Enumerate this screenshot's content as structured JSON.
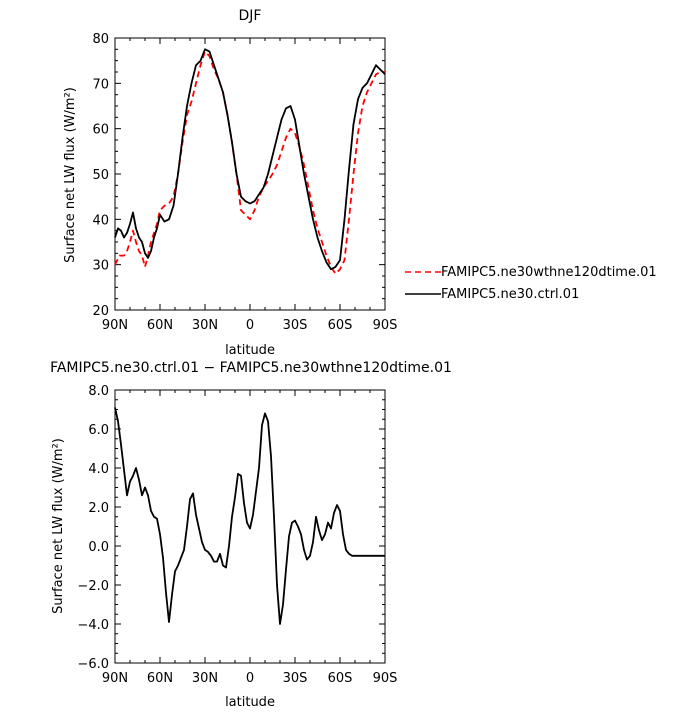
{
  "chart_data": [
    {
      "type": "line",
      "title": "DJF",
      "xlabel": "latitude",
      "ylabel": "Surface net LW flux (W/m²)",
      "xlim": [
        90,
        -90
      ],
      "ylim": [
        20,
        80
      ],
      "x_ticks": [
        90,
        60,
        30,
        0,
        -30,
        -60,
        -90
      ],
      "x_tick_labels": [
        "90N",
        "60N",
        "30N",
        "0",
        "30S",
        "60S",
        "90S"
      ],
      "y_ticks": [
        20,
        30,
        40,
        50,
        60,
        70,
        80
      ],
      "y_tick_labels": [
        "20",
        "30",
        "40",
        "50",
        "60",
        "70",
        "80"
      ],
      "grid": false,
      "legend_position": "outside-right",
      "series": [
        {
          "name": "FAMIPC5.ne30wthne120dtime.01",
          "color": "#ff0000",
          "dash": "dashed",
          "x": [
            90,
            87,
            84,
            82,
            80,
            78,
            76,
            74,
            72,
            70,
            68,
            66,
            64,
            62,
            60,
            57,
            54,
            51,
            48,
            45,
            42,
            39,
            36,
            33,
            30,
            27,
            24,
            21,
            18,
            15,
            12,
            9,
            6,
            3,
            0,
            -3,
            -6,
            -9,
            -12,
            -15,
            -18,
            -21,
            -24,
            -27,
            -30,
            -33,
            -36,
            -39,
            -42,
            -45,
            -48,
            -51,
            -54,
            -57,
            -60,
            -63,
            -66,
            -69,
            -72,
            -75,
            -78,
            -81,
            -84,
            -87,
            -90
          ],
          "y": [
            30,
            32,
            32,
            33,
            35,
            37.5,
            35,
            33,
            32,
            29.5,
            32,
            35,
            37,
            39,
            42,
            43,
            43.5,
            45,
            50,
            57,
            63,
            66,
            70,
            74,
            77,
            76,
            73,
            71,
            68,
            63,
            57,
            50,
            42,
            41,
            40,
            42,
            45,
            47,
            48.5,
            50,
            52,
            55,
            58,
            60,
            59,
            56,
            52,
            47,
            42,
            38,
            35,
            32,
            29.5,
            28,
            29,
            31,
            40,
            50,
            59,
            65,
            68,
            70,
            72,
            72.5,
            72.5
          ]
        },
        {
          "name": "FAMIPC5.ne30.ctrl.01",
          "color": "#000000",
          "dash": "solid",
          "x": [
            90,
            88,
            86,
            84,
            82,
            80,
            78,
            76,
            74,
            72,
            70,
            68,
            66,
            64,
            62,
            60,
            57,
            54,
            51,
            48,
            45,
            42,
            39,
            36,
            33,
            30,
            27,
            24,
            21,
            18,
            15,
            12,
            9,
            6,
            3,
            0,
            -3,
            -6,
            -9,
            -12,
            -15,
            -18,
            -21,
            -24,
            -27,
            -30,
            -33,
            -36,
            -39,
            -42,
            -45,
            -48,
            -51,
            -54,
            -57,
            -60,
            -63,
            -66,
            -69,
            -72,
            -75,
            -78,
            -81,
            -84,
            -87,
            -90
          ],
          "y": [
            36,
            38,
            37.5,
            36,
            37,
            39,
            41.5,
            38,
            36,
            35,
            32.5,
            31.5,
            33,
            36,
            38,
            41,
            39.5,
            40,
            43,
            50,
            58,
            65,
            70,
            74,
            75,
            77.5,
            77,
            74,
            71,
            68,
            63,
            57,
            50,
            45,
            44,
            43.5,
            44,
            45.5,
            47,
            50,
            54,
            58,
            62,
            64.5,
            65,
            62,
            56,
            50,
            45,
            40,
            36,
            33,
            30.5,
            29,
            29.5,
            31,
            40,
            51,
            61,
            66.5,
            69,
            70,
            72,
            74,
            73,
            72
          ]
        }
      ]
    },
    {
      "type": "line",
      "title": "FAMIPC5.ne30.ctrl.01 − FAMIPC5.ne30wthne120dtime.01",
      "xlabel": "latitude",
      "ylabel": "Surface net LW flux (W/m²)",
      "xlim": [
        90,
        -90
      ],
      "ylim": [
        -6,
        8
      ],
      "x_ticks": [
        90,
        60,
        30,
        0,
        -30,
        -60,
        -90
      ],
      "x_tick_labels": [
        "90N",
        "60N",
        "30N",
        "0",
        "30S",
        "60S",
        "90S"
      ],
      "y_ticks": [
        -6,
        -4,
        -2,
        0,
        2,
        4,
        6,
        8
      ],
      "y_tick_labels": [
        "−6.0",
        "−4.0",
        "−2.0",
        "0.0",
        "2.0",
        "4.0",
        "6.0",
        "8.0"
      ],
      "grid": false,
      "series": [
        {
          "color": "#000000",
          "dash": "solid",
          "x": [
            90,
            88,
            86,
            84,
            82,
            80,
            78,
            76,
            74,
            72,
            70,
            68,
            66,
            64,
            62,
            60,
            58,
            56,
            54,
            52,
            50,
            48,
            46,
            44,
            42,
            40,
            38,
            36,
            34,
            32,
            30,
            28,
            26,
            24,
            22,
            20,
            18,
            16,
            14,
            12,
            10,
            8,
            6,
            4,
            2,
            0,
            -2,
            -4,
            -6,
            -8,
            -10,
            -12,
            -14,
            -16,
            -18,
            -20,
            -22,
            -24,
            -26,
            -28,
            -30,
            -32,
            -34,
            -36,
            -38,
            -40,
            -42,
            -44,
            -46,
            -48,
            -50,
            -52,
            -54,
            -56,
            -58,
            -60,
            -62,
            -64,
            -66,
            -68,
            -70,
            -72,
            -74,
            -76,
            -78,
            -80,
            -82,
            -84,
            -86,
            -88,
            -90
          ],
          "y": [
            7.1,
            6.4,
            5.2,
            3.9,
            2.6,
            3.3,
            3.6,
            4.0,
            3.4,
            2.6,
            3.0,
            2.6,
            1.8,
            1.5,
            1.4,
            0.6,
            -0.6,
            -2.4,
            -3.9,
            -2.5,
            -1.3,
            -1.0,
            -0.6,
            -0.2,
            1.0,
            2.4,
            2.7,
            1.6,
            0.9,
            0.2,
            -0.2,
            -0.3,
            -0.5,
            -0.8,
            -0.8,
            -0.4,
            -1.0,
            -1.1,
            0.0,
            1.5,
            2.5,
            3.7,
            3.6,
            2.2,
            1.2,
            0.9,
            1.6,
            2.8,
            4.0,
            6.2,
            6.8,
            6.4,
            4.6,
            1.5,
            -2.0,
            -4.0,
            -3.0,
            -1.2,
            0.5,
            1.2,
            1.3,
            1.0,
            0.6,
            -0.2,
            -0.7,
            -0.5,
            0.2,
            1.5,
            0.8,
            0.3,
            0.6,
            1.2,
            0.9,
            1.7,
            2.1,
            1.8,
            0.6,
            -0.2,
            -0.4,
            -0.5,
            -0.5,
            -0.5,
            -0.5,
            -0.5,
            -0.5,
            -0.5,
            -0.5,
            -0.5,
            -0.5,
            -0.5,
            -0.5
          ]
        }
      ]
    }
  ]
}
